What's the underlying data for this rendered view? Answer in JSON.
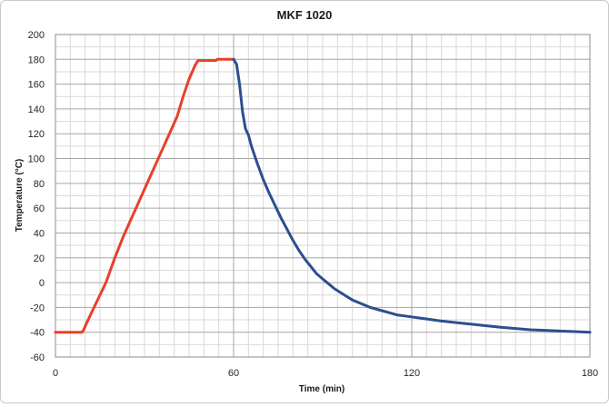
{
  "chart_data": {
    "type": "line",
    "title": "MKF 1020",
    "xlabel": "Time (min)",
    "ylabel": "Temperature (°C)",
    "xlim": [
      0,
      180
    ],
    "ylim": [
      -60,
      200
    ],
    "x_ticks": [
      0,
      60,
      120,
      180
    ],
    "y_ticks": [
      -60,
      -40,
      -20,
      0,
      20,
      40,
      60,
      80,
      100,
      120,
      140,
      160,
      180,
      200
    ],
    "x_minor_step": 5,
    "y_minor_step": 10,
    "grid": true,
    "legend": "none",
    "series": [
      {
        "color": "#e8402a",
        "points": [
          [
            0,
            -40
          ],
          [
            9,
            -40
          ],
          [
            9.5,
            -38
          ],
          [
            11,
            -30
          ],
          [
            13,
            -20
          ],
          [
            15,
            -10
          ],
          [
            17,
            0
          ],
          [
            20,
            20
          ],
          [
            23,
            38
          ],
          [
            26,
            54
          ],
          [
            29,
            70
          ],
          [
            32,
            86
          ],
          [
            35,
            102
          ],
          [
            38,
            118
          ],
          [
            41,
            134
          ],
          [
            43,
            150
          ],
          [
            45,
            164
          ],
          [
            47,
            175
          ],
          [
            48,
            179
          ],
          [
            50,
            179
          ],
          [
            52,
            179
          ],
          [
            54,
            179
          ],
          [
            54.5,
            180
          ],
          [
            60,
            180
          ]
        ]
      },
      {
        "color": "#2c4f8f",
        "points": [
          [
            60,
            180
          ],
          [
            61,
            176
          ],
          [
            62,
            160
          ],
          [
            63,
            138
          ],
          [
            64,
            124
          ],
          [
            65,
            119
          ],
          [
            66,
            110
          ],
          [
            68,
            96
          ],
          [
            70,
            83
          ],
          [
            72,
            72
          ],
          [
            74,
            62
          ],
          [
            76,
            52
          ],
          [
            78,
            43
          ],
          [
            80,
            34
          ],
          [
            82,
            26
          ],
          [
            84,
            19
          ],
          [
            86,
            13
          ],
          [
            88,
            7
          ],
          [
            90,
            3
          ],
          [
            92,
            -1
          ],
          [
            94,
            -5
          ],
          [
            96,
            -8
          ],
          [
            98,
            -11
          ],
          [
            100,
            -14
          ],
          [
            103,
            -17
          ],
          [
            106,
            -20
          ],
          [
            109,
            -22
          ],
          [
            112,
            -24
          ],
          [
            115,
            -26
          ],
          [
            118,
            -27
          ],
          [
            121,
            -28
          ],
          [
            124,
            -29
          ],
          [
            127,
            -30
          ],
          [
            130,
            -31
          ],
          [
            134,
            -32
          ],
          [
            138,
            -33
          ],
          [
            142,
            -34
          ],
          [
            146,
            -35
          ],
          [
            150,
            -36
          ],
          [
            155,
            -37
          ],
          [
            160,
            -38
          ],
          [
            165,
            -38.5
          ],
          [
            170,
            -39
          ],
          [
            175,
            -39.5
          ],
          [
            180,
            -40
          ]
        ]
      }
    ]
  }
}
